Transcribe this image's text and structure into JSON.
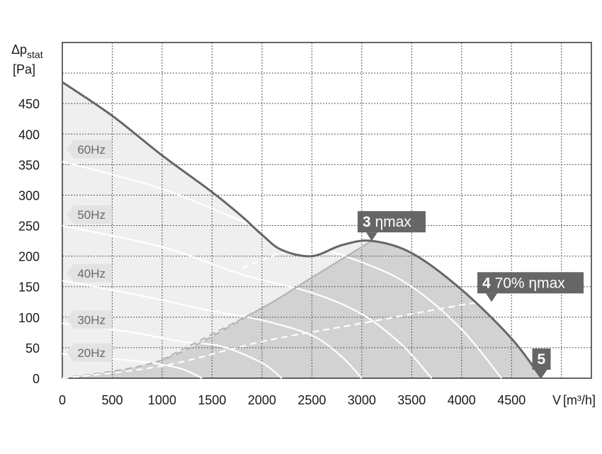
{
  "chart_data": {
    "type": "line",
    "axis_title_y": "Δp",
    "axis_title_y_sub": "stat",
    "axis_unit_y": "[Pa]",
    "axis_title_x": "V",
    "axis_unit_x": "[m³/h]",
    "xlim": [
      0,
      5300
    ],
    "ylim": [
      0,
      550
    ],
    "x_ticks": [
      0,
      500,
      1000,
      1500,
      2000,
      2500,
      3000,
      3500,
      4000,
      4500
    ],
    "y_ticks": [
      0,
      50,
      100,
      150,
      200,
      250,
      300,
      350,
      400,
      450
    ],
    "grid": true,
    "series": [
      {
        "role": "max-curve",
        "color": "#666666",
        "x": [
          0,
          500,
          1000,
          1500,
          1800,
          2000,
          2200,
          2500,
          2800,
          3100,
          3500,
          4000,
          4500,
          4800
        ],
        "y": [
          485,
          430,
          365,
          305,
          265,
          235,
          210,
          200,
          218,
          225,
          205,
          145,
          65,
          0
        ]
      },
      {
        "role": "speed-curve",
        "name": "60Hz",
        "color": "#ffffff",
        "x": [
          0,
          1000,
          2000,
          3000,
          3500,
          4000,
          4400
        ],
        "y": [
          355,
          310,
          245,
          190,
          150,
          80,
          0
        ]
      },
      {
        "role": "speed-curve",
        "name": "50Hz",
        "color": "#ffffff",
        "x": [
          0,
          1000,
          1800,
          2500,
          3000,
          3400,
          3700
        ],
        "y": [
          250,
          215,
          170,
          140,
          105,
          55,
          0
        ]
      },
      {
        "role": "speed-curve",
        "name": "40Hz",
        "color": "#ffffff",
        "x": [
          0,
          800,
          1500,
          2000,
          2500,
          2800,
          3000
        ],
        "y": [
          160,
          135,
          110,
          95,
          70,
          35,
          0
        ]
      },
      {
        "role": "speed-curve",
        "name": "30Hz",
        "color": "#ffffff",
        "x": [
          0,
          700,
          1200,
          1600,
          2000,
          2200
        ],
        "y": [
          90,
          75,
          60,
          52,
          25,
          0
        ]
      },
      {
        "role": "speed-curve",
        "name": "20Hz",
        "color": "#ffffff",
        "x": [
          0,
          500,
          900,
          1200,
          1400
        ],
        "y": [
          40,
          32,
          25,
          15,
          0
        ]
      },
      {
        "role": "efficiency-line",
        "name": "3 ηmax",
        "color": "#b4b4b4",
        "x": [
          0,
          1000,
          2000,
          2500,
          3100
        ],
        "y": [
          0,
          30,
          115,
          165,
          225
        ]
      },
      {
        "role": "efficiency-line",
        "name": "4 70% ηmax",
        "color": "#ffffff",
        "x": [
          0,
          1000,
          2000,
          3000,
          4000,
          4300
        ],
        "y": [
          0,
          20,
          60,
          90,
          120,
          125
        ]
      },
      {
        "role": "efficiency-line",
        "color": "#b4b4b4",
        "x": [
          1000,
          2000,
          2500,
          3100
        ],
        "y": [
          30,
          115,
          165,
          225
        ]
      },
      {
        "role": "efficiency-line",
        "color": "#ffffff",
        "x": [
          1800,
          2100,
          2500,
          3000,
          3200
        ],
        "y": [
          180,
          200,
          218,
          235,
          240
        ]
      }
    ],
    "speed_labels": [
      {
        "text": "60Hz",
        "x": 200,
        "y": 375
      },
      {
        "text": "50Hz",
        "x": 200,
        "y": 268
      },
      {
        "text": "40Hz",
        "x": 200,
        "y": 172
      },
      {
        "text": "30Hz",
        "x": 200,
        "y": 96
      },
      {
        "text": "20Hz",
        "x": 200,
        "y": 42
      }
    ],
    "markers": [
      {
        "id": "3",
        "label_bold": "3",
        "label": "ηmax",
        "x": 3100,
        "y": 225
      },
      {
        "id": "4",
        "label_bold": "4",
        "label": "70% ηmax",
        "x": 4300,
        "y": 125
      },
      {
        "id": "5",
        "label_bold": "5",
        "label": "",
        "x": 4800,
        "y": 0
      }
    ],
    "colors": {
      "upper_area": "#efefef",
      "lower_area": "#d2d2d2",
      "curve": "#666666",
      "marker_bg": "#666666",
      "grid": "#555555"
    }
  }
}
